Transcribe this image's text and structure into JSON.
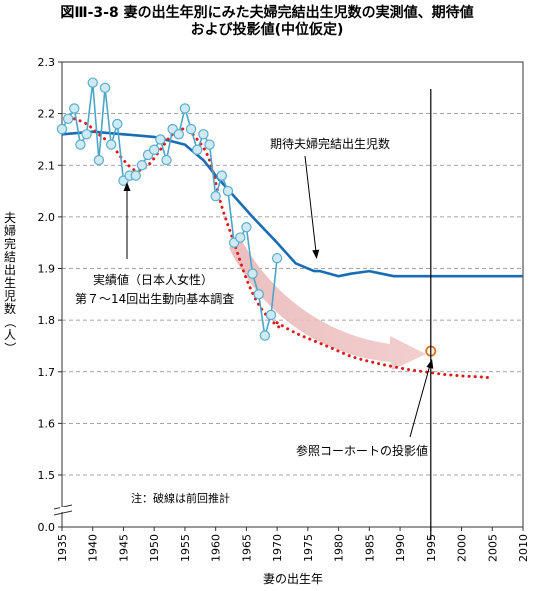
{
  "title_line1": "図Ⅲ-3-8 妻の出生年別にみた夫婦完結出生児数の実測値、期待値",
  "title_line2": "および投影値(中位仮定)",
  "chart_data": {
    "type": "line",
    "xlabel": "妻の出生年",
    "ylabel": "夫婦完結出生児数（人）",
    "xlim": [
      1935,
      2010
    ],
    "ylim": [
      0.0,
      2.3
    ],
    "x_ticks": [
      1935,
      1940,
      1945,
      1950,
      1955,
      1960,
      1965,
      1970,
      1975,
      1980,
      1985,
      1990,
      1995,
      2000,
      2005,
      2010
    ],
    "y_ticks": [
      "0.0",
      "1.5",
      "1.6",
      "1.7",
      "1.8",
      "1.9",
      "2.0",
      "2.1",
      "2.2",
      "2.3"
    ],
    "axis_break": true,
    "grid": "horizontal dashed",
    "series": [
      {
        "name": "実績値（日本人女性）",
        "style": "light blue line with circle markers",
        "x": [
          1935,
          1936,
          1937,
          1938,
          1939,
          1940,
          1941,
          1942,
          1943,
          1944,
          1945,
          1946,
          1947,
          1948,
          1949,
          1950,
          1951,
          1952,
          1953,
          1954,
          1955,
          1956,
          1957,
          1958,
          1959,
          1960,
          1961,
          1962,
          1963,
          1964,
          1965,
          1966,
          1967,
          1968,
          1969,
          1970
        ],
        "y": [
          2.17,
          2.19,
          2.21,
          2.14,
          2.16,
          2.26,
          2.11,
          2.25,
          2.14,
          2.18,
          2.07,
          2.08,
          2.08,
          2.1,
          2.12,
          2.13,
          2.15,
          2.11,
          2.17,
          2.16,
          2.21,
          2.17,
          2.13,
          2.16,
          2.14,
          2.04,
          2.08,
          2.05,
          1.95,
          1.96,
          1.98,
          1.89,
          1.85,
          1.77,
          1.81,
          1.92
        ]
      },
      {
        "name": "実績値 前回推計",
        "style": "red dotted",
        "x": [
          1937,
          1939,
          1941,
          1943,
          1945,
          1947,
          1949,
          1951,
          1953,
          1955,
          1957,
          1959,
          1961,
          1963,
          1965,
          1967,
          1969,
          1971
        ],
        "y": [
          2.19,
          2.18,
          2.16,
          2.14,
          2.11,
          2.09,
          2.1,
          2.13,
          2.16,
          2.17,
          2.15,
          2.11,
          2.02,
          1.95,
          1.88,
          1.83,
          1.8,
          1.78
        ]
      },
      {
        "name": "期待夫婦完結出生児数",
        "style": "dark blue solid",
        "x": [
          1935,
          1940,
          1945,
          1950,
          1955,
          1958,
          1960,
          1963,
          1966,
          1970,
          1973,
          1976,
          1977,
          1980,
          1982,
          1985,
          1987,
          1989,
          1990,
          1995,
          2000,
          2005,
          2010
        ],
        "y": [
          2.16,
          2.165,
          2.16,
          2.155,
          2.14,
          2.11,
          2.08,
          2.04,
          2.0,
          1.95,
          1.91,
          1.895,
          1.895,
          1.885,
          1.89,
          1.895,
          1.89,
          1.885,
          1.885,
          1.885,
          1.885,
          1.885,
          1.885
        ]
      },
      {
        "name": "期待値 前回推計",
        "style": "red dotted",
        "x": [
          1970,
          1973,
          1976,
          1979,
          1982,
          1985,
          1988,
          1991,
          1994,
          1997,
          2000,
          2003,
          2005
        ],
        "y": [
          1.795,
          1.775,
          1.76,
          1.745,
          1.73,
          1.72,
          1.712,
          1.705,
          1.7,
          1.695,
          1.692,
          1.69,
          1.688
        ]
      },
      {
        "name": "参照コーホートの投影値",
        "style": "orange open circle",
        "x": [
          1995
        ],
        "y": [
          1.74
        ]
      }
    ],
    "annotations": {
      "actual_label_line1": "実績値（日本人女性）",
      "actual_label_line2": "第７～14回出生動向基本調査",
      "expected_label": "期待夫婦完結出生児数",
      "projection_label": "参照コーホートの投影値",
      "note": "注：破線は前回推計"
    },
    "reference_vline_x": 1995
  }
}
